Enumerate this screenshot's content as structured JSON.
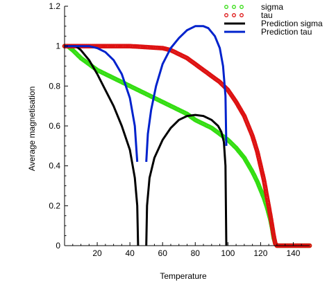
{
  "chart_data": {
    "type": "scatter",
    "xlabel": "Temperature",
    "ylabel": "Average magnetisation",
    "xlim": [
      0,
      150
    ],
    "ylim": [
      0,
      1.2
    ],
    "x_ticks": [
      20,
      40,
      60,
      80,
      100,
      120,
      140
    ],
    "y_ticks": [
      0,
      0.2,
      0.4,
      0.6,
      0.8,
      1,
      1.2
    ],
    "y_tick_labels": [
      "0",
      "0.2",
      "0.4",
      "0.6",
      "0.8",
      "1",
      "1.2"
    ],
    "legend_position": "top-right",
    "grid": false,
    "series": [
      {
        "name": "sigma",
        "style": "points",
        "color": "#33dd11",
        "points": [
          [
            0,
            1.0
          ],
          [
            2,
            1.0
          ],
          [
            5,
            0.98
          ],
          [
            10,
            0.94
          ],
          [
            15,
            0.91
          ],
          [
            20,
            0.88
          ],
          [
            25,
            0.86
          ],
          [
            30,
            0.84
          ],
          [
            35,
            0.82
          ],
          [
            40,
            0.8
          ],
          [
            45,
            0.78
          ],
          [
            50,
            0.76
          ],
          [
            55,
            0.74
          ],
          [
            60,
            0.72
          ],
          [
            65,
            0.7
          ],
          [
            70,
            0.68
          ],
          [
            75,
            0.66
          ],
          [
            80,
            0.63
          ],
          [
            85,
            0.61
          ],
          [
            90,
            0.59
          ],
          [
            95,
            0.56
          ],
          [
            100,
            0.53
          ],
          [
            105,
            0.49
          ],
          [
            110,
            0.44
          ],
          [
            115,
            0.37
          ],
          [
            118,
            0.32
          ],
          [
            120,
            0.28
          ],
          [
            122,
            0.24
          ],
          [
            124,
            0.19
          ],
          [
            126,
            0.13
          ],
          [
            127,
            0.09
          ],
          [
            128,
            0.04
          ],
          [
            129,
            0.01
          ],
          [
            130,
            0.0
          ],
          [
            140,
            0.0
          ],
          [
            150,
            0.0
          ]
        ]
      },
      {
        "name": "tau",
        "style": "points",
        "color": "#dd1111",
        "points": [
          [
            0,
            1.0
          ],
          [
            10,
            1.0
          ],
          [
            20,
            1.0
          ],
          [
            30,
            1.0
          ],
          [
            40,
            1.0
          ],
          [
            50,
            0.995
          ],
          [
            60,
            0.99
          ],
          [
            65,
            0.98
          ],
          [
            70,
            0.96
          ],
          [
            75,
            0.94
          ],
          [
            80,
            0.91
          ],
          [
            85,
            0.88
          ],
          [
            90,
            0.85
          ],
          [
            95,
            0.82
          ],
          [
            100,
            0.78
          ],
          [
            105,
            0.72
          ],
          [
            110,
            0.65
          ],
          [
            115,
            0.55
          ],
          [
            118,
            0.47
          ],
          [
            120,
            0.4
          ],
          [
            122,
            0.33
          ],
          [
            124,
            0.24
          ],
          [
            126,
            0.15
          ],
          [
            127,
            0.1
          ],
          [
            128,
            0.05
          ],
          [
            129,
            0.01
          ],
          [
            130,
            0.0
          ],
          [
            140,
            0.0
          ],
          [
            150,
            0.0
          ]
        ]
      },
      {
        "name": "Prediction sigma",
        "style": "line",
        "color": "#000000",
        "segments": [
          [
            [
              0,
              1.0
            ],
            [
              3,
              1.0
            ],
            [
              7,
              1.0
            ],
            [
              10,
              0.98
            ],
            [
              15,
              0.93
            ],
            [
              20,
              0.86
            ],
            [
              25,
              0.78
            ],
            [
              30,
              0.7
            ],
            [
              35,
              0.6
            ],
            [
              40,
              0.48
            ],
            [
              43,
              0.34
            ],
            [
              44.5,
              0.2
            ],
            [
              45,
              0.0
            ]
          ],
          [
            [
              50,
              0.0
            ],
            [
              50.5,
              0.2
            ],
            [
              52,
              0.34
            ],
            [
              55,
              0.44
            ],
            [
              60,
              0.53
            ],
            [
              65,
              0.59
            ],
            [
              70,
              0.63
            ],
            [
              75,
              0.65
            ],
            [
              80,
              0.655
            ],
            [
              85,
              0.65
            ],
            [
              90,
              0.63
            ],
            [
              94,
              0.6
            ],
            [
              96,
              0.57
            ],
            [
              97.5,
              0.52
            ],
            [
              98.5,
              0.4
            ],
            [
              99,
              0.0
            ]
          ]
        ]
      },
      {
        "name": "Prediction tau",
        "style": "line",
        "color": "#0022cc",
        "segments": [
          [
            [
              0,
              1.0
            ],
            [
              10,
              1.0
            ],
            [
              15,
              1.0
            ],
            [
              20,
              0.99
            ],
            [
              25,
              0.97
            ],
            [
              30,
              0.93
            ],
            [
              35,
              0.86
            ],
            [
              40,
              0.74
            ],
            [
              43,
              0.6
            ],
            [
              44.5,
              0.42
            ]
          ],
          [
            [
              50,
              0.42
            ],
            [
              51,
              0.56
            ],
            [
              53,
              0.68
            ],
            [
              56,
              0.8
            ],
            [
              60,
              0.91
            ],
            [
              65,
              0.99
            ],
            [
              70,
              1.04
            ],
            [
              75,
              1.08
            ],
            [
              80,
              1.1
            ],
            [
              85,
              1.1
            ],
            [
              88,
              1.09
            ],
            [
              92,
              1.05
            ],
            [
              95,
              0.99
            ],
            [
              97,
              0.9
            ],
            [
              98.5,
              0.75
            ],
            [
              99,
              0.5
            ]
          ]
        ]
      }
    ]
  }
}
